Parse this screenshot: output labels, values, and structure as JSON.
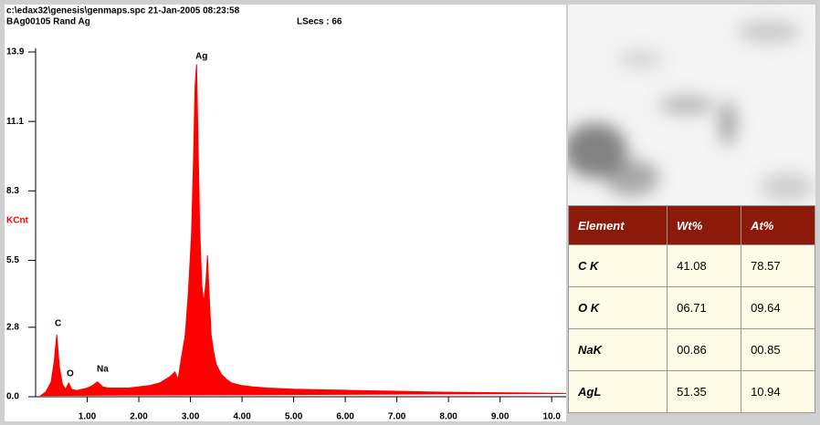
{
  "chart_data": {
    "type": "area",
    "header_lines": [
      "c:\\edax32\\genesis\\genmaps.spc  21-Jan-2005 08:23:58",
      "BAg00105 Rand Ag"
    ],
    "live_seconds": "LSecs : 66",
    "y_label": "KCnt",
    "peak_labels": [
      "C",
      "O",
      "Na",
      "Ag"
    ],
    "color": "#ff0000",
    "x": [
      0.1,
      0.2,
      0.3,
      0.36,
      0.41,
      0.46,
      0.52,
      0.58,
      0.64,
      0.7,
      0.8,
      0.9,
      1.0,
      1.1,
      1.2,
      1.3,
      1.4,
      1.6,
      1.8,
      2.0,
      2.2,
      2.4,
      2.6,
      2.7,
      2.76,
      2.82,
      2.9,
      2.96,
      3.02,
      3.06,
      3.09,
      3.12,
      3.15,
      3.18,
      3.22,
      3.26,
      3.3,
      3.33,
      3.36,
      3.4,
      3.45,
      3.5,
      3.6,
      3.7,
      3.8,
      3.9,
      4.0,
      4.2,
      4.5,
      5.0,
      5.5,
      6.0,
      6.5,
      7.0,
      7.5,
      8.0,
      8.5,
      9.0,
      9.5,
      10.0,
      10.28
    ],
    "values": [
      0.05,
      0.2,
      0.6,
      1.4,
      2.5,
      1.2,
      0.5,
      0.3,
      0.55,
      0.3,
      0.25,
      0.3,
      0.35,
      0.45,
      0.6,
      0.4,
      0.35,
      0.35,
      0.35,
      0.4,
      0.45,
      0.55,
      0.8,
      1.0,
      0.7,
      1.5,
      2.5,
      4.2,
      6.5,
      9.5,
      12.5,
      13.4,
      10.0,
      6.8,
      4.5,
      3.8,
      4.6,
      5.7,
      4.2,
      2.5,
      1.8,
      1.3,
      0.9,
      0.7,
      0.55,
      0.5,
      0.45,
      0.4,
      0.35,
      0.3,
      0.28,
      0.26,
      0.24,
      0.22,
      0.2,
      0.18,
      0.17,
      0.16,
      0.15,
      0.14,
      0.13
    ],
    "xlim": [
      0,
      10.28
    ],
    "ylim": [
      0,
      13.9
    ],
    "xticks": [
      {
        "value": 1,
        "label": "1.00"
      },
      {
        "value": 2,
        "label": "2.00"
      },
      {
        "value": 3,
        "label": "3.00"
      },
      {
        "value": 4,
        "label": "4.00"
      },
      {
        "value": 5,
        "label": "5.00"
      },
      {
        "value": 6,
        "label": "6.00"
      },
      {
        "value": 7,
        "label": "7.00"
      },
      {
        "value": 8,
        "label": "8.00"
      },
      {
        "value": 9,
        "label": "9.00"
      },
      {
        "value": 10,
        "label": "10.0"
      }
    ],
    "yticks": [
      {
        "value": 0,
        "label": "0.0"
      },
      2.8,
      5.5,
      8.3,
      11.1,
      13.9
    ]
  },
  "table": {
    "columns": [
      "Element",
      "Wt%",
      "At%"
    ],
    "rows": [
      [
        "C K",
        "41.08",
        "78.57"
      ],
      [
        "O K",
        "06.71",
        "09.64"
      ],
      [
        "NaK",
        "00.86",
        "00.85"
      ],
      [
        "AgL",
        "51.35",
        "10.94"
      ]
    ]
  }
}
